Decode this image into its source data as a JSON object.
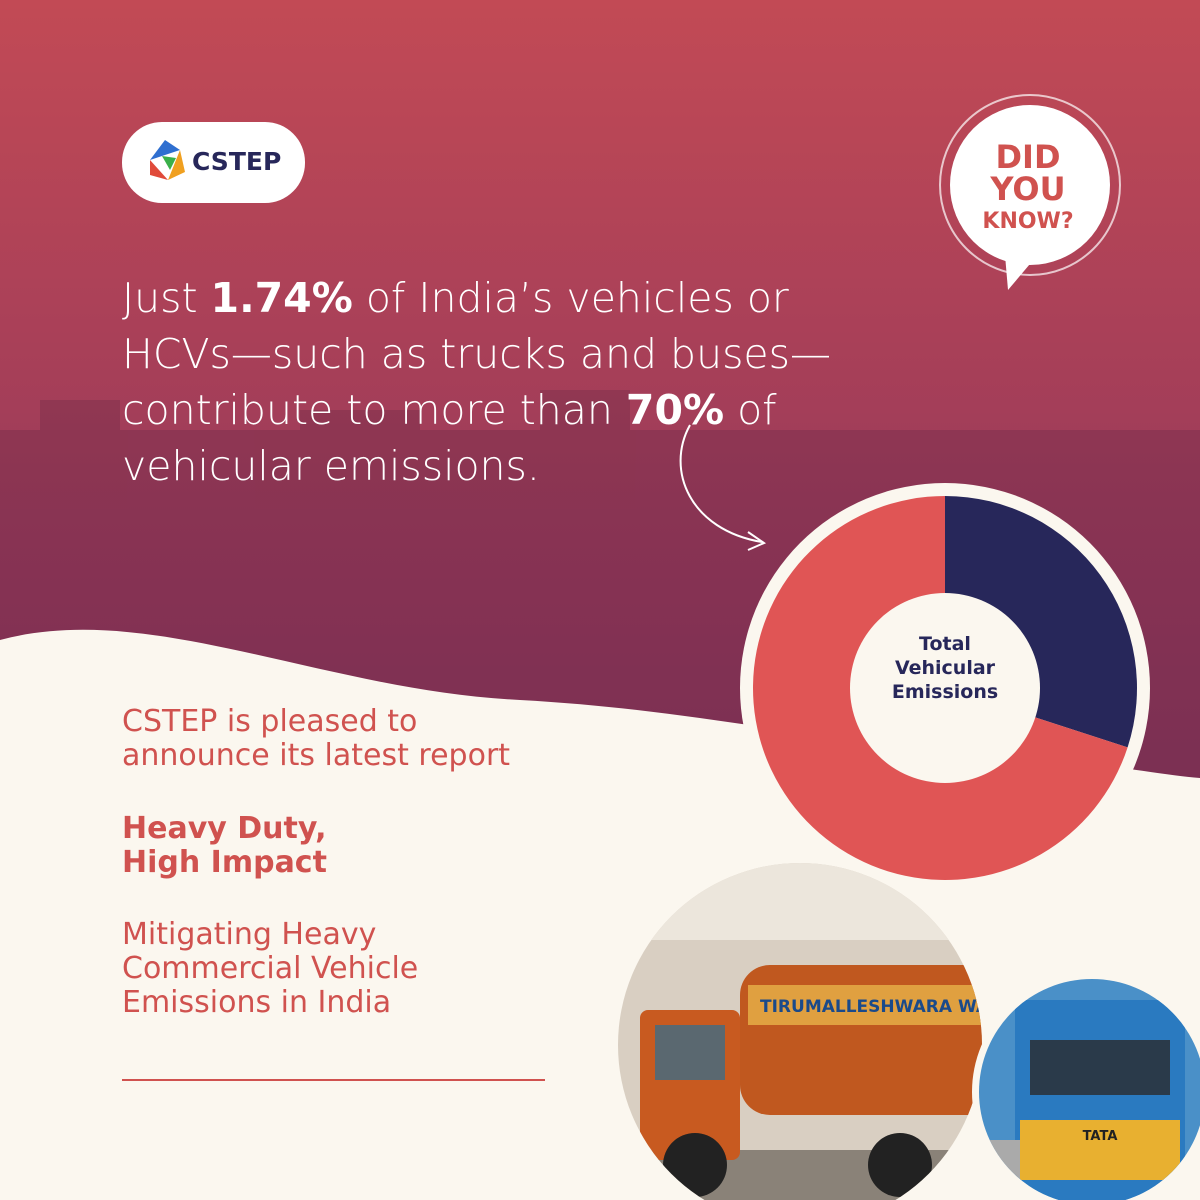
{
  "brand": {
    "name": "CSTEP"
  },
  "badge": {
    "lines": [
      "DID",
      "YOU",
      "KNOW?"
    ]
  },
  "headline": {
    "lines": [
      [
        "Just ",
        "1.74%",
        " of India’s vehicles or"
      ],
      [
        "HCVs—such as trucks and buses—"
      ],
      [
        "contribute to more than ",
        "70%",
        " of"
      ],
      [
        "vehicular emissions."
      ]
    ]
  },
  "chart_data": {
    "type": "pie",
    "values": [
      30,
      70
    ],
    "colors": [
      "#27275a",
      "#e05555"
    ],
    "center_label": [
      "Total",
      "Vehicular",
      "Emissions"
    ]
  },
  "announcement": {
    "lines": [
      "CSTEP is pleased to",
      "announce its latest report"
    ]
  },
  "report": {
    "title": [
      "Heavy Duty,",
      "High Impact"
    ],
    "subtitle": [
      "Mitigating Heavy",
      "Commercial Vehicle",
      "Emissions in India"
    ]
  },
  "photo": {
    "sign": "TIRUMALLESHWARA WATER SUPPLY",
    "bus": "TATA"
  }
}
